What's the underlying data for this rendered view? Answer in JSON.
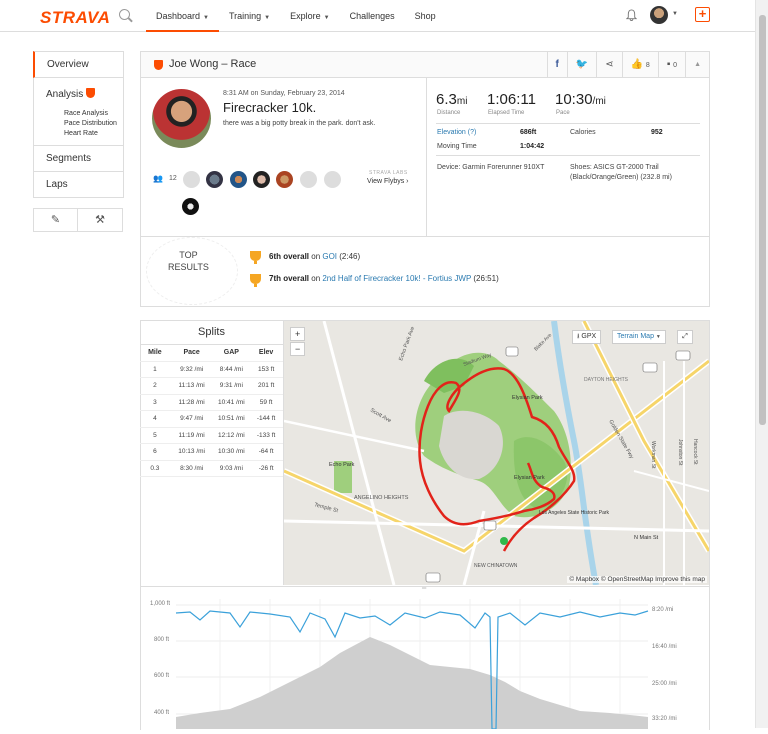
{
  "header": {
    "logo": "STRAVA",
    "nav": [
      "Dashboard",
      "Training",
      "Explore",
      "Challenges",
      "Shop"
    ],
    "active_nav": "Dashboard",
    "plus": "+"
  },
  "sidebar": {
    "overview": "Overview",
    "analysis": "Analysis",
    "analysis_items": [
      "Race Analysis",
      "Pace Distribution",
      "Heart Rate"
    ],
    "segments": "Segments",
    "laps": "Laps",
    "tool1": "/",
    "tool2": "🔧"
  },
  "activity": {
    "title": "Joe Wong – Race",
    "kudos_count": "8",
    "comments_count": "0",
    "timestamp": "8:31 AM on Sunday, February 23, 2014",
    "name": "Firecracker 10k.",
    "description": "there was a big potty break in the park. don't ask.",
    "kudoers_count": "12",
    "labs_label": "STRAVA LABS",
    "flyby_label": "View Flybys"
  },
  "stats": {
    "distance_value": "6.3",
    "distance_unit": "mi",
    "distance_label": "Distance",
    "elapsed_value": "1:06:11",
    "elapsed_label": "Elapsed Time",
    "pace_value": "10:30",
    "pace_unit": "/mi",
    "pace_label": "Pace",
    "elevation_label": "Elevation (?)",
    "elevation_value": "686ft",
    "calories_label": "Calories",
    "calories_value": "952",
    "moving_label": "Moving Time",
    "moving_value": "1:04:42",
    "device": "Device: Garmin Forerunner 910XT",
    "shoes_line1": "Shoes: ASICS GT-2000 Trail",
    "shoes_line2": "(Black/Orange/Green) (232.8 mi)"
  },
  "top_results": {
    "label_line1": "TOP",
    "label_line2": "RESULTS",
    "r1_rank": "6th overall",
    "r1_on": " on ",
    "r1_segment": "GOI",
    "r1_time": " (2:46)",
    "r2_rank": "7th overall",
    "r2_on": " on ",
    "r2_segment": "2nd Half of Firecracker 10k! - Fortius JWP",
    "r2_time": " (26:51)"
  },
  "splits": {
    "title": "Splits",
    "headers": [
      "Mile",
      "Pace",
      "GAP",
      "Elev"
    ],
    "rows": [
      [
        "1",
        "9:32 /mi",
        "8:44 /mi",
        "153 ft"
      ],
      [
        "2",
        "11:13 /mi",
        "9:31 /mi",
        "201 ft"
      ],
      [
        "3",
        "11:28 /mi",
        "10:41 /mi",
        "59 ft"
      ],
      [
        "4",
        "9:47 /mi",
        "10:51 /mi",
        "-144 ft"
      ],
      [
        "5",
        "11:19 /mi",
        "12:12 /mi",
        "-133 ft"
      ],
      [
        "6",
        "10:13 /mi",
        "10:30 /mi",
        "-64 ft"
      ],
      [
        "0.3",
        "8:30 /mi",
        "9:03 /mi",
        "-26 ft"
      ]
    ]
  },
  "map": {
    "zoom_in": "+",
    "zoom_out": "−",
    "gpx": "GPX",
    "terrain": "Terrain Map",
    "attribution": "© Mapbox © OpenStreetMap  Improve this map",
    "labels": [
      "Echo Park Ave",
      "Scott Ave",
      "Echo Park",
      "ANGELINO HEIGHTS",
      "Temple St",
      "Elysian Park",
      "Elysian Park",
      "Los Angeles State Historic Park",
      "NEW CHINATOWN",
      "N Main St",
      "DAYTON HEIGHTS",
      "Golden State Fwy",
      "Workman St",
      "Hancock St",
      "Johnston St",
      "Stadium Way",
      "Blake Ave"
    ]
  },
  "elevation_chart": {
    "left_ticks": [
      "1,000 ft",
      "800 ft",
      "600 ft",
      "400 ft"
    ],
    "right_ticks": [
      "8:20 /mi",
      "16:40 /mi",
      "25:00 /mi",
      "33:20 /mi"
    ]
  },
  "colors": {
    "brand": "#fc4c02",
    "route": "#e2231a",
    "pace_line": "#3ba1da",
    "elevation_fill": "#cfcfcf",
    "link": "#2a7ab0"
  }
}
